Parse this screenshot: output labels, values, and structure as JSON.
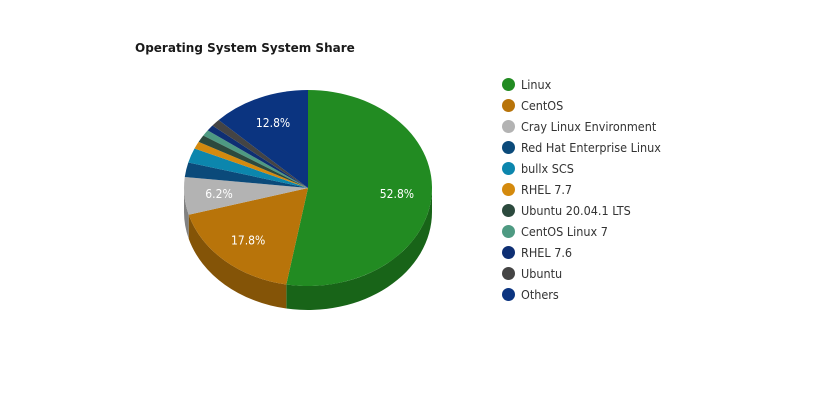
{
  "chart_data": {
    "type": "pie",
    "title": "Operating System System Share",
    "legend_position": "right",
    "slices": [
      {
        "name": "Linux",
        "value": 52.8,
        "color": "#228B22",
        "label": "52.8%"
      },
      {
        "name": "CentOS",
        "value": 17.8,
        "color": "#B8740A",
        "label": "17.8%"
      },
      {
        "name": "Cray Linux Environment",
        "value": 6.2,
        "color": "#B3B3B3",
        "label": "6.2%"
      },
      {
        "name": "Red Hat Enterprise Linux",
        "value": 2.4,
        "color": "#0B4A7A",
        "label": ""
      },
      {
        "name": "bullx SCS",
        "value": 2.4,
        "color": "#0C86AD",
        "label": ""
      },
      {
        "name": "RHEL 7.7",
        "value": 1.2,
        "color": "#D48A0E",
        "label": ""
      },
      {
        "name": "Ubuntu 20.04.1 LTS",
        "value": 1.2,
        "color": "#2C4A3E",
        "label": ""
      },
      {
        "name": "CentOS Linux 7",
        "value": 1.0,
        "color": "#4E9A82",
        "label": ""
      },
      {
        "name": "RHEL 7.6",
        "value": 1.0,
        "color": "#0E2F73",
        "label": ""
      },
      {
        "name": "Ubuntu",
        "value": 1.2,
        "color": "#444444",
        "label": ""
      },
      {
        "name": "Others",
        "value": 12.8,
        "color": "#0B3480",
        "label": "12.8%"
      }
    ]
  }
}
